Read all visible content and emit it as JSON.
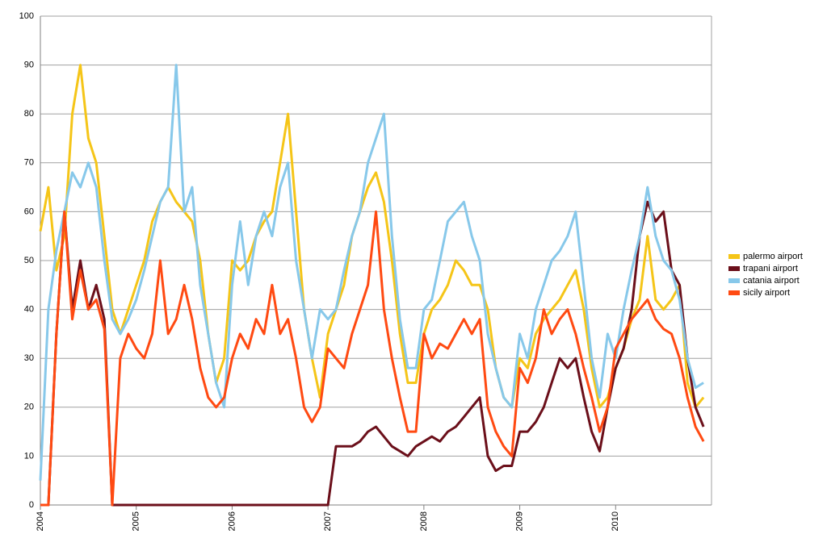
{
  "chart_data": {
    "type": "line",
    "x": [
      2004.0,
      2004.083,
      2004.167,
      2004.25,
      2004.333,
      2004.417,
      2004.5,
      2004.583,
      2004.667,
      2004.75,
      2004.833,
      2004.917,
      2005.0,
      2005.083,
      2005.167,
      2005.25,
      2005.333,
      2005.417,
      2005.5,
      2005.583,
      2005.667,
      2005.75,
      2005.833,
      2005.917,
      2006.0,
      2006.083,
      2006.167,
      2006.25,
      2006.333,
      2006.417,
      2006.5,
      2006.583,
      2006.667,
      2006.75,
      2006.833,
      2006.917,
      2007.0,
      2007.083,
      2007.167,
      2007.25,
      2007.333,
      2007.417,
      2007.5,
      2007.583,
      2007.667,
      2007.75,
      2007.833,
      2007.917,
      2008.0,
      2008.083,
      2008.167,
      2008.25,
      2008.333,
      2008.417,
      2008.5,
      2008.583,
      2008.667,
      2008.75,
      2008.833,
      2008.917,
      2009.0,
      2009.083,
      2009.167,
      2009.25,
      2009.333,
      2009.417,
      2009.5,
      2009.583,
      2009.667,
      2009.75,
      2009.833,
      2009.917,
      2010.0,
      2010.083,
      2010.167,
      2010.25,
      2010.333,
      2010.417,
      2010.5,
      2010.583,
      2010.667,
      2010.75,
      2010.833,
      2010.917
    ],
    "series": [
      {
        "name": "palermo airport",
        "color": "#f5c518",
        "values": [
          56,
          65,
          48,
          55,
          80,
          90,
          75,
          70,
          55,
          40,
          35,
          40,
          45,
          50,
          58,
          62,
          65,
          62,
          60,
          58,
          50,
          35,
          25,
          30,
          50,
          48,
          50,
          55,
          58,
          60,
          70,
          80,
          60,
          40,
          30,
          22,
          35,
          40,
          45,
          55,
          60,
          65,
          68,
          62,
          50,
          35,
          25,
          25,
          35,
          40,
          42,
          45,
          50,
          48,
          45,
          45,
          40,
          28,
          22,
          20,
          30,
          28,
          35,
          38,
          40,
          42,
          45,
          48,
          40,
          28,
          20,
          22,
          28,
          32,
          38,
          42,
          55,
          42,
          40,
          42,
          45,
          25,
          20,
          22
        ]
      },
      {
        "name": "trapani airport",
        "color": "#6b0f1a",
        "values": [
          0,
          0,
          35,
          60,
          40,
          50,
          40,
          45,
          38,
          0,
          0,
          0,
          0,
          0,
          0,
          0,
          0,
          0,
          0,
          0,
          0,
          0,
          0,
          0,
          0,
          0,
          0,
          0,
          0,
          0,
          0,
          0,
          0,
          0,
          0,
          0,
          0,
          12,
          12,
          12,
          13,
          15,
          16,
          14,
          12,
          11,
          10,
          12,
          13,
          14,
          13,
          15,
          16,
          18,
          20,
          22,
          10,
          7,
          8,
          8,
          15,
          15,
          17,
          20,
          25,
          30,
          28,
          30,
          22,
          15,
          11,
          20,
          28,
          32,
          40,
          55,
          62,
          58,
          60,
          48,
          45,
          30,
          20,
          16
        ]
      },
      {
        "name": "catania airport",
        "color": "#87c8ea",
        "values": [
          5,
          40,
          52,
          60,
          68,
          65,
          70,
          65,
          50,
          38,
          35,
          38,
          42,
          48,
          55,
          62,
          65,
          90,
          60,
          65,
          45,
          35,
          25,
          20,
          45,
          58,
          45,
          55,
          60,
          55,
          65,
          70,
          50,
          40,
          30,
          40,
          38,
          40,
          48,
          55,
          60,
          70,
          75,
          80,
          55,
          38,
          28,
          28,
          40,
          42,
          50,
          58,
          60,
          62,
          55,
          50,
          35,
          28,
          22,
          20,
          35,
          30,
          40,
          45,
          50,
          52,
          55,
          60,
          45,
          30,
          22,
          35,
          30,
          40,
          48,
          55,
          65,
          55,
          50,
          48,
          42,
          30,
          24,
          25
        ]
      },
      {
        "name": "sicily airport",
        "color": "#ff4a12",
        "values": [
          0,
          0,
          35,
          60,
          38,
          48,
          40,
          42,
          36,
          0,
          30,
          35,
          32,
          30,
          35,
          50,
          35,
          38,
          45,
          38,
          28,
          22,
          20,
          22,
          30,
          35,
          32,
          38,
          35,
          45,
          35,
          38,
          30,
          20,
          17,
          20,
          32,
          30,
          28,
          35,
          40,
          45,
          60,
          40,
          30,
          22,
          15,
          15,
          35,
          30,
          33,
          32,
          35,
          38,
          35,
          38,
          20,
          15,
          12,
          10,
          28,
          25,
          30,
          40,
          35,
          38,
          40,
          35,
          28,
          22,
          15,
          20,
          32,
          35,
          38,
          40,
          42,
          38,
          36,
          35,
          30,
          22,
          16,
          13
        ]
      }
    ],
    "xlim": [
      2004,
      2011
    ],
    "xticks": [
      2004,
      2005,
      2006,
      2007,
      2008,
      2009,
      2010
    ],
    "ylim": [
      0,
      100
    ],
    "yticks": [
      0,
      10,
      20,
      30,
      40,
      50,
      60,
      70,
      80,
      90,
      100
    ],
    "grid": true,
    "legend": "right"
  }
}
